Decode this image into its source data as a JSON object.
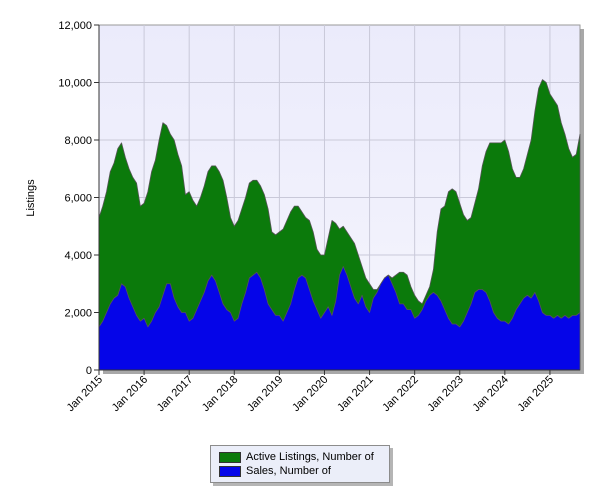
{
  "chart_data": {
    "type": "area",
    "title": "",
    "xlabel": "",
    "ylabel": "Listings",
    "ylim": [
      0,
      12000
    ],
    "yticks": [
      "0",
      "2,000",
      "4,000",
      "6,000",
      "8,000",
      "10,000",
      "12,000"
    ],
    "xticks": [
      "Jan 2015",
      "Jan 2016",
      "Jan 2017",
      "Jan 2018",
      "Jan 2019",
      "Jan 2020",
      "Jan 2021",
      "Jan 2022",
      "Jan 2023",
      "Jan 2024",
      "Jan 2025"
    ],
    "grid": true,
    "legend_position": "bottom-center",
    "stacked": false,
    "x_start": "2015-01",
    "x_step": "month",
    "series": [
      {
        "name": "Active Listings, Number of",
        "color": "#0b7a0b",
        "values": [
          5300,
          5700,
          6200,
          6900,
          7200,
          7700,
          7900,
          7400,
          7000,
          6700,
          6500,
          5700,
          5800,
          6200,
          6900,
          7300,
          8000,
          8600,
          8500,
          8200,
          8000,
          7500,
          7100,
          6100,
          6200,
          5900,
          5700,
          6000,
          6400,
          6900,
          7100,
          7100,
          6900,
          6600,
          6000,
          5300,
          5000,
          5200,
          5600,
          6000,
          6500,
          6600,
          6600,
          6400,
          6100,
          5600,
          4800,
          4700,
          4800,
          4900,
          5200,
          5500,
          5700,
          5700,
          5500,
          5300,
          5200,
          4800,
          4200,
          4000,
          4000,
          4600,
          5200,
          5100,
          4900,
          5000,
          4800,
          4600,
          4400,
          4000,
          3600,
          3200,
          3000,
          2800,
          2800,
          3000,
          3200,
          3300,
          3200,
          3300,
          3400,
          3400,
          3300,
          2900,
          2600,
          2400,
          2300,
          2600,
          2900,
          3500,
          4800,
          5600,
          5700,
          6200,
          6300,
          6200,
          5800,
          5400,
          5200,
          5300,
          5800,
          6300,
          7100,
          7600,
          7900,
          7900,
          7900,
          7900,
          8000,
          7600,
          7000,
          6700,
          6700,
          7000,
          7500,
          8000,
          9000,
          9800,
          10100,
          10000,
          9600,
          9400,
          9200,
          8600,
          8200,
          7700,
          7400,
          7500,
          8200
        ]
      },
      {
        "name": "Sales, Number of",
        "color": "#0505e8",
        "values": [
          1500,
          1700,
          2000,
          2300,
          2500,
          2600,
          3000,
          2900,
          2500,
          2200,
          1900,
          1700,
          1800,
          1500,
          1700,
          2000,
          2200,
          2600,
          3000,
          3000,
          2500,
          2200,
          2000,
          2000,
          1700,
          1800,
          2100,
          2400,
          2700,
          3100,
          3300,
          3100,
          2700,
          2300,
          2100,
          2000,
          1700,
          1800,
          2300,
          2700,
          3200,
          3300,
          3400,
          3200,
          2800,
          2300,
          2100,
          1900,
          1900,
          1700,
          2000,
          2300,
          2800,
          3200,
          3300,
          3200,
          2800,
          2400,
          2100,
          1800,
          2000,
          2200,
          1900,
          2400,
          3300,
          3600,
          3300,
          2900,
          2500,
          2300,
          2600,
          2200,
          2000,
          2500,
          2700,
          3000,
          3200,
          3300,
          3000,
          2700,
          2300,
          2300,
          2100,
          2100,
          1800,
          1900,
          2100,
          2400,
          2600,
          2700,
          2600,
          2400,
          2100,
          1800,
          1600,
          1600,
          1500,
          1700,
          2000,
          2300,
          2700,
          2800,
          2800,
          2700,
          2400,
          2000,
          1800,
          1700,
          1700,
          1600,
          1800,
          2100,
          2300,
          2500,
          2600,
          2500,
          2700,
          2400,
          2000,
          1900,
          1900,
          1800,
          1900,
          1800,
          1900,
          1800,
          1900,
          1900,
          2000
        ]
      }
    ]
  }
}
